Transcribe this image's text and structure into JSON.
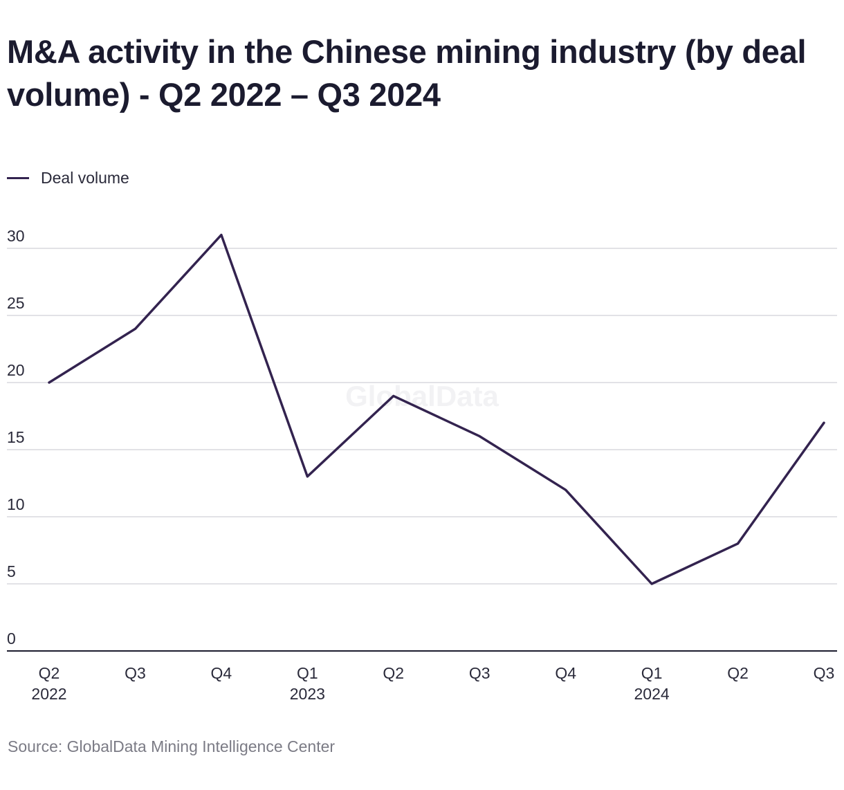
{
  "title": "M&A activity in the Chinese mining industry (by deal volume) - Q2 2022 – Q3 2024",
  "legend": {
    "label": "Deal volume"
  },
  "source": "Source: GlobalData Mining Intelligence Center",
  "watermark": "GlobalData",
  "colors": {
    "line": "#33234f",
    "grid": "#d9d9dd",
    "axis": "#1c1c2e"
  },
  "chart_data": {
    "type": "line",
    "title": "M&A activity in the Chinese mining industry (by deal volume) - Q2 2022 – Q3 2024",
    "xlabel": "",
    "ylabel": "",
    "ylim": [
      0,
      30
    ],
    "yticks": [
      0,
      5,
      10,
      15,
      20,
      25,
      30
    ],
    "grid": true,
    "legend_position": "top-left",
    "categories": [
      [
        "Q2",
        "2022"
      ],
      [
        "Q3",
        ""
      ],
      [
        "Q4",
        ""
      ],
      [
        "Q1",
        "2023"
      ],
      [
        "Q2",
        ""
      ],
      [
        "Q3",
        ""
      ],
      [
        "Q4",
        ""
      ],
      [
        "Q1",
        "2024"
      ],
      [
        "Q2",
        ""
      ],
      [
        "Q3",
        ""
      ]
    ],
    "series": [
      {
        "name": "Deal volume",
        "values": [
          20,
          24,
          31,
          13,
          19,
          16,
          12,
          5,
          8,
          17
        ]
      }
    ]
  }
}
